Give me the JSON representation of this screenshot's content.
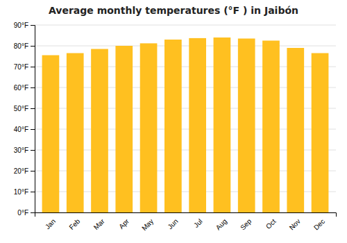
{
  "chart_data": {
    "type": "bar",
    "title": "Average monthly temperatures (°F ) in Jaibón",
    "categories": [
      "Jan",
      "Feb",
      "Mar",
      "Apr",
      "May",
      "Jun",
      "Jul",
      "Aug",
      "Sep",
      "Oct",
      "Nov",
      "Dec"
    ],
    "values": [
      75.5,
      76.5,
      78.5,
      80.0,
      81.2,
      83.0,
      83.7,
      84.0,
      83.5,
      82.5,
      79.0,
      76.5
    ],
    "color": "#FFC020",
    "ylim": [
      0,
      90
    ],
    "yticks": [
      {
        "value": 0,
        "label": "0°F"
      },
      {
        "value": 10,
        "label": "10°F"
      },
      {
        "value": 20,
        "label": "20°F"
      },
      {
        "value": 30,
        "label": "30°F"
      },
      {
        "value": 40,
        "label": "40°F"
      },
      {
        "value": 50,
        "label": "50°F"
      },
      {
        "value": 60,
        "label": "60°F"
      },
      {
        "value": 70,
        "label": "70°F"
      },
      {
        "value": 80,
        "label": "80°F"
      },
      {
        "value": 90,
        "label": "90°F"
      }
    ],
    "grid": true
  }
}
